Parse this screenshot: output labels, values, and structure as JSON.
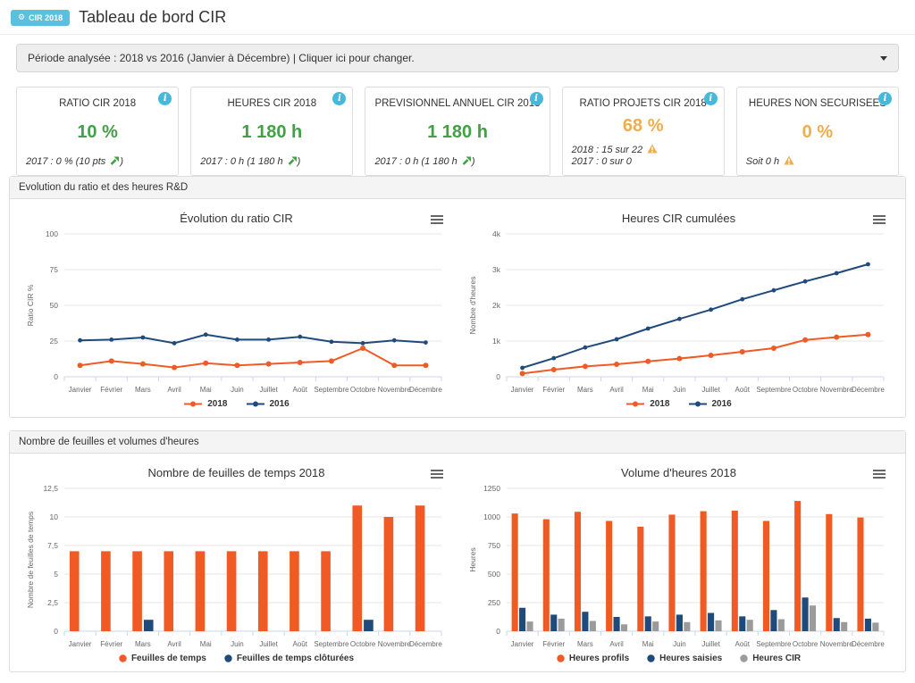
{
  "header": {
    "badge_label": "CIR 2018",
    "title": "Tableau de bord CIR"
  },
  "period_bar": {
    "text": "Période analysée : 2018 vs 2016 (Janvier à Décembre) | Cliquer ici pour changer."
  },
  "colors": {
    "badge": "#5bc0de",
    "info": "#46b8da",
    "green": "#43a047",
    "orange": "#f0ad4e",
    "trend_up": "#3fa142",
    "warning": "#f0ad4e",
    "series_orange": "#f05b25",
    "series_navy": "#1f4a7c",
    "series_gray": "#9b9b9b"
  },
  "cards": [
    {
      "title": "RATIO CIR 2018",
      "value": "10 %",
      "value_color": "green",
      "lines": [
        {
          "pre": "2017 : 0 % (10 pts ",
          "icon": "trend-up-icon",
          "post": ")"
        }
      ]
    },
    {
      "title": "HEURES CIR 2018",
      "value": "1 180 h",
      "value_color": "green",
      "lines": [
        {
          "pre": "2017 : 0 h (1 180 h ",
          "icon": "trend-up-icon",
          "post": ")"
        }
      ]
    },
    {
      "title": "PREVISIONNEL ANNUEL CIR 2018",
      "value": "1 180 h",
      "value_color": "green",
      "lines": [
        {
          "pre": "2017 : 0 h (1 180 h ",
          "icon": "trend-up-icon",
          "post": ")"
        }
      ]
    },
    {
      "title": "RATIO PROJETS CIR 2018",
      "value": "68 %",
      "value_color": "orange",
      "lines": [
        {
          "pre": "2018 : 15 sur 22 ",
          "icon": "warning-icon",
          "post": ""
        },
        {
          "pre": "2017 : 0 sur 0",
          "icon": "",
          "post": ""
        }
      ]
    },
    {
      "title": "HEURES NON SECURISEES",
      "value": "0 %",
      "value_color": "orange",
      "lines": [
        {
          "pre": "Soit 0 h ",
          "icon": "warning-icon",
          "post": ""
        }
      ]
    }
  ],
  "sections": [
    {
      "title": "Evolution du ratio et des heures R&D"
    },
    {
      "title": "Nombre de feuilles et volumes d'heures"
    }
  ],
  "chart_data": [
    {
      "type": "line",
      "title": "Évolution du ratio CIR",
      "ylabel": "Ratio CIR %",
      "ymax": 100,
      "yticks": [
        0,
        25,
        50,
        75,
        100
      ],
      "ytick_labels": [
        "0",
        "25",
        "50",
        "75",
        "100"
      ],
      "grid": true,
      "legend_position": "bottom",
      "categories": [
        "Janvier",
        "Février",
        "Mars",
        "Avril",
        "Mai",
        "Juin",
        "Juillet",
        "Août",
        "Septembre",
        "Octobre",
        "Novembre",
        "Décembre"
      ],
      "series": [
        {
          "name": "2018",
          "color": "#f05b25",
          "values": [
            8,
            11,
            9,
            6.5,
            9.5,
            8,
            9,
            10,
            11,
            20,
            8,
            8
          ]
        },
        {
          "name": "2016",
          "color": "#1f4a7c",
          "values": [
            25.5,
            26,
            27.5,
            23.5,
            29.5,
            26,
            26,
            28,
            24.5,
            23.5,
            25.5,
            24
          ]
        }
      ]
    },
    {
      "type": "line",
      "title": "Heures CIR cumulées",
      "ylabel": "Nombre d'heures",
      "ymax": 4000,
      "yticks": [
        0,
        1000,
        2000,
        3000,
        4000
      ],
      "ytick_labels": [
        "0",
        "1k",
        "2k",
        "3k",
        "4k"
      ],
      "grid": true,
      "legend_position": "bottom",
      "categories": [
        "Janvier",
        "Février",
        "Mars",
        "Avril",
        "Mai",
        "Juin",
        "Juillet",
        "Août",
        "Septembre",
        "Octobre",
        "Novembre",
        "Décembre"
      ],
      "series": [
        {
          "name": "2018",
          "color": "#f05b25",
          "values": [
            90,
            200,
            290,
            350,
            430,
            510,
            600,
            700,
            800,
            1030,
            1110,
            1180
          ]
        },
        {
          "name": "2016",
          "color": "#1f4a7c",
          "values": [
            250,
            520,
            820,
            1050,
            1350,
            1620,
            1880,
            2170,
            2420,
            2670,
            2900,
            3150
          ]
        }
      ]
    },
    {
      "type": "bar",
      "title": "Nombre de feuilles de temps 2018",
      "ylabel": "Nombre de feuilles de temps",
      "ymax": 12.5,
      "yticks": [
        0,
        2.5,
        5,
        7.5,
        10,
        12.5
      ],
      "ytick_labels": [
        "0",
        "2,5",
        "5",
        "7,5",
        "10",
        "12,5"
      ],
      "grid": true,
      "legend_position": "bottom",
      "categories": [
        "Janvier",
        "Février",
        "Mars",
        "Avril",
        "Mai",
        "Juin",
        "Juillet",
        "Août",
        "Septembre",
        "Octobre",
        "Novembre",
        "Décembre"
      ],
      "series": [
        {
          "name": "Feuilles de temps",
          "color": "#f05b25",
          "values": [
            7,
            7,
            7,
            7,
            7,
            7,
            7,
            7,
            7,
            11,
            10,
            11
          ]
        },
        {
          "name": "Feuilles de temps clôturées",
          "color": "#1f4a7c",
          "values": [
            0,
            0,
            1,
            0,
            0,
            0,
            0,
            0,
            0,
            1,
            0,
            0
          ]
        }
      ]
    },
    {
      "type": "bar",
      "title": "Volume d'heures 2018",
      "ylabel": "Heures",
      "ymax": 1250,
      "yticks": [
        0,
        250,
        500,
        750,
        1000,
        1250
      ],
      "ytick_labels": [
        "0",
        "250",
        "500",
        "750",
        "1000",
        "1250"
      ],
      "grid": true,
      "legend_position": "bottom",
      "categories": [
        "Janvier",
        "Février",
        "Mars",
        "Avril",
        "Mai",
        "Juin",
        "Juillet",
        "Août",
        "Septembre",
        "Octobre",
        "Novembre",
        "Décembre"
      ],
      "series": [
        {
          "name": "Heures profils",
          "color": "#f05b25",
          "values": [
            1030,
            980,
            1045,
            965,
            915,
            1020,
            1050,
            1055,
            965,
            1140,
            1025,
            995
          ]
        },
        {
          "name": "Heures saisies",
          "color": "#1f4a7c",
          "values": [
            205,
            145,
            170,
            125,
            130,
            145,
            160,
            130,
            185,
            295,
            115,
            110
          ]
        },
        {
          "name": "Heures CIR",
          "color": "#9b9b9b",
          "values": [
            85,
            110,
            90,
            60,
            85,
            80,
            95,
            100,
            105,
            225,
            80,
            75
          ]
        }
      ]
    }
  ]
}
